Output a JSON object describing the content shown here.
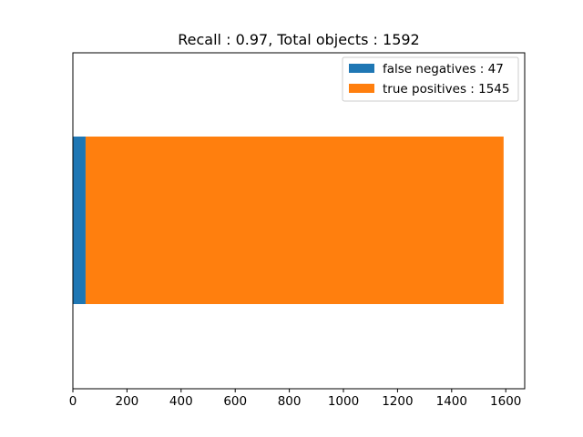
{
  "chart_data": {
    "type": "bar",
    "orientation": "horizontal",
    "stacked": true,
    "title": "Recall : 0.97, Total objects : 1592",
    "xlabel": "",
    "ylabel": "",
    "xlim": [
      0,
      1670
    ],
    "x_ticks": [
      0,
      200,
      400,
      600,
      800,
      1000,
      1200,
      1400,
      1600
    ],
    "y_ticks": [],
    "grid": false,
    "legend_position": "top-right",
    "series": [
      {
        "name": "false negatives : 47",
        "values": [
          47
        ],
        "color": "#1f77b4"
      },
      {
        "name": "true positives : 1545",
        "values": [
          1545
        ],
        "color": "#ff7f0e"
      }
    ]
  }
}
